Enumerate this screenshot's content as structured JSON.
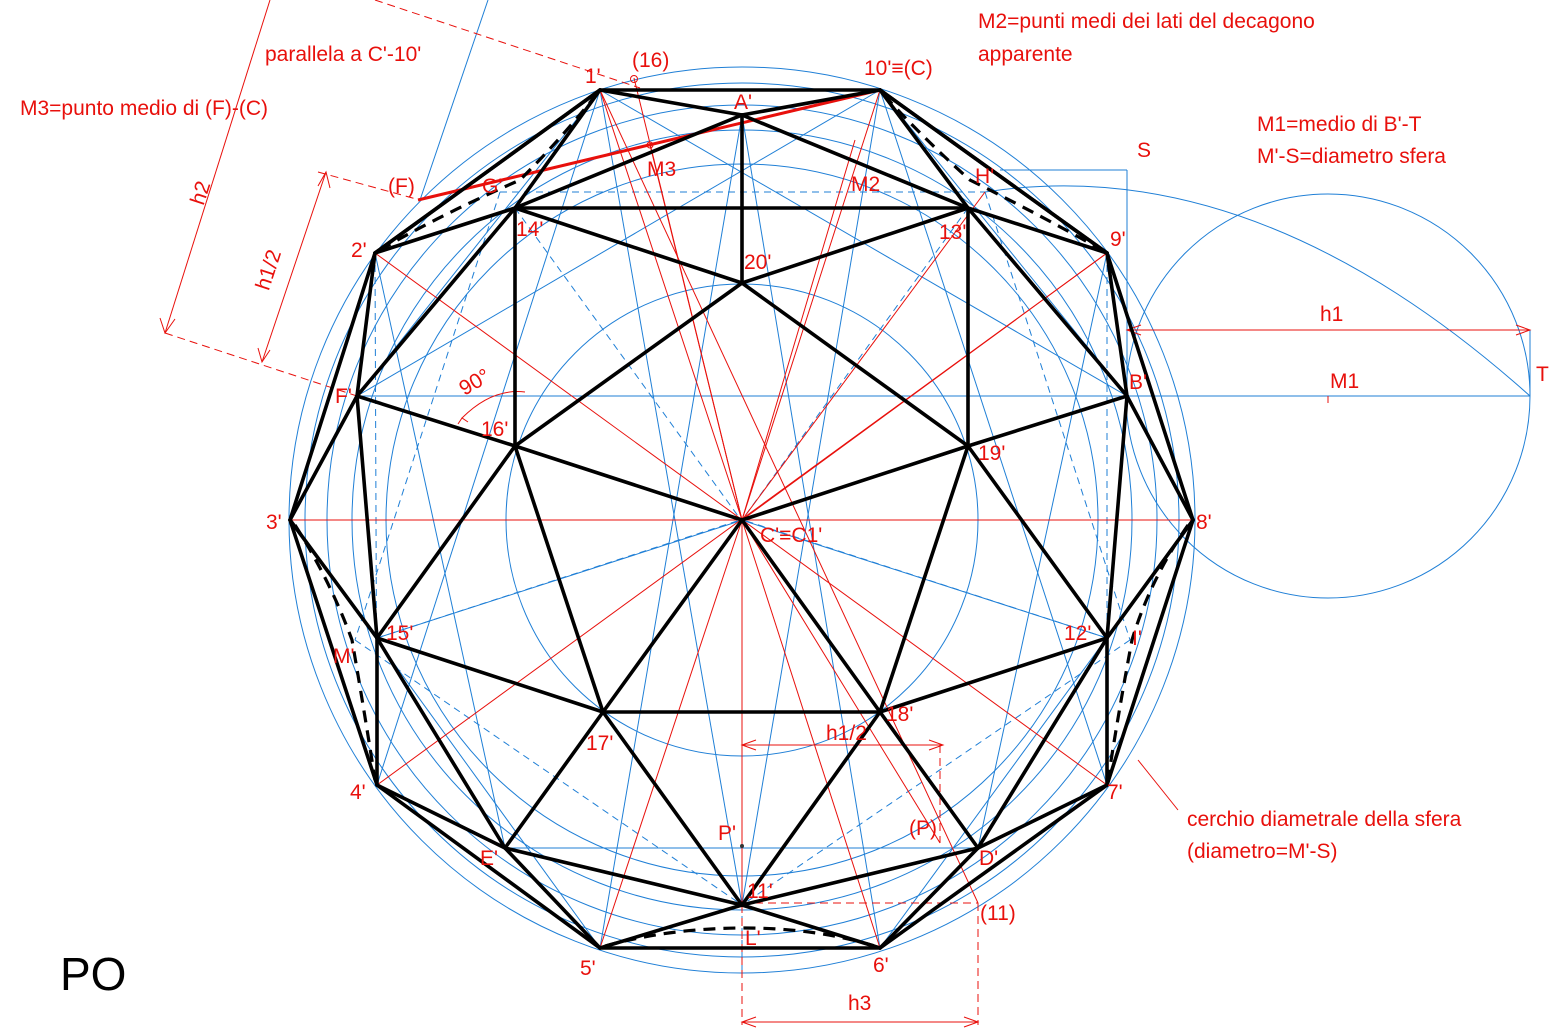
{
  "figure": {
    "corner_label": "PO",
    "notes": {
      "m2_line1": "M2=punti medi dei lati del decagono",
      "m2_line2": "apparente",
      "m1_line1": "M1=medio di B'-T",
      "m1_line2": "M'-S=diametro sfera",
      "m3": "M3=punto medio di (F)-(C)",
      "parallel": "parallela a C'-10'",
      "circle_line1": "cerchio diametrale della sfera",
      "circle_line2": "(diametro=M'-S)"
    },
    "dimensions": {
      "h1": "h1",
      "h1_half_left": "h1/2",
      "h1_half_bottom": "h1/2",
      "h2": "h2",
      "h3": "h3",
      "angle": "90°"
    },
    "points": {
      "p1": "1'",
      "p16": "(16)",
      "p10c": "10'≡(C)",
      "pA": "A'",
      "pM3": "M3",
      "pM2": "M2",
      "pF": "(F)",
      "pG": "G'",
      "pH": "H'",
      "pS": "S",
      "p14": "14'",
      "p13": "13'",
      "p2": "2'",
      "p9": "9'",
      "p20": "20'",
      "pF1": "F'",
      "pB": "B'",
      "pM1": "M1",
      "pT": "T",
      "p16b": "16'",
      "p19": "19'",
      "p3": "3'",
      "p8": "8'",
      "pC": "C'≡C1'",
      "p15": "15'",
      "p12": "12'",
      "pM": "M'",
      "pI": "I'",
      "p18": "18'",
      "p17": "17'",
      "p4": "4'",
      "p7": "7'",
      "pP": "P'",
      "pPP": "(P)",
      "pE": "E'",
      "pD": "D'",
      "p11": "11'",
      "p11b": "(11)",
      "pL": "L'",
      "p5": "5'",
      "p6": "6'"
    }
  }
}
